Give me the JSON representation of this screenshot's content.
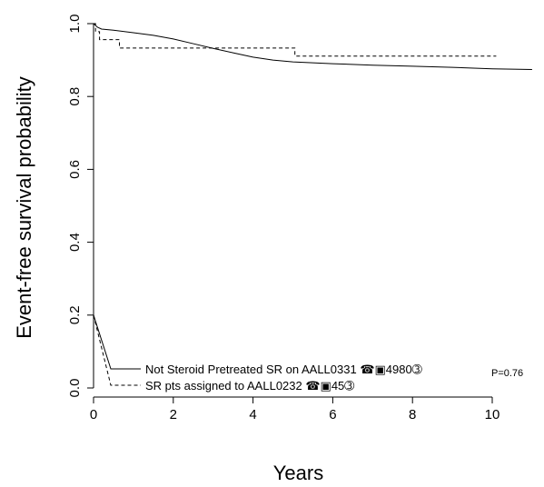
{
  "chart_data": {
    "type": "line",
    "title": "",
    "xlabel": "Years",
    "ylabel": "Event-free survival probability",
    "xlim": [
      0,
      11
    ],
    "ylim": [
      0,
      1
    ],
    "x_ticks": [
      0,
      2,
      4,
      6,
      8,
      10
    ],
    "y_ticks": [
      0.0,
      0.2,
      0.4,
      0.6,
      0.8,
      1.0
    ],
    "x_tick_labels": [
      "0",
      "2",
      "4",
      "6",
      "8",
      "10"
    ],
    "y_tick_labels": [
      "0.0",
      "0.2",
      "0.4",
      "0.6",
      "0.8",
      "1.0"
    ],
    "grid": false,
    "legend_position": "bottom-center",
    "annotation": "P=0.76",
    "series": [
      {
        "name": "Not Steroid Pretreated SR on AALL0331 ☎▣4980➂",
        "style": "solid",
        "step": false,
        "x": [
          0,
          0.1,
          0.2,
          0.5,
          1.0,
          1.5,
          2.0,
          2.5,
          3.0,
          3.5,
          4.0,
          4.5,
          5.0,
          6.0,
          7.0,
          8.0,
          9.0,
          10.0,
          11.0
        ],
        "y": [
          1.0,
          0.99,
          0.985,
          0.982,
          0.975,
          0.968,
          0.958,
          0.945,
          0.932,
          0.92,
          0.908,
          0.9,
          0.895,
          0.89,
          0.886,
          0.883,
          0.88,
          0.876,
          0.874
        ]
      },
      {
        "name": "SR pts assigned to AALL0232 ☎▣45➂",
        "style": "dashed",
        "step": true,
        "x": [
          0,
          0.05,
          0.15,
          0.65,
          5.05,
          10.1
        ],
        "y": [
          1.0,
          0.978,
          0.956,
          0.933,
          0.911,
          0.911
        ]
      }
    ]
  }
}
